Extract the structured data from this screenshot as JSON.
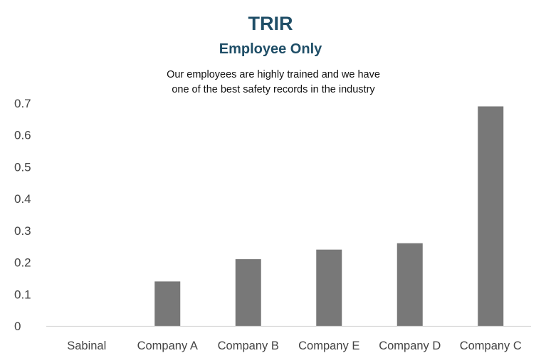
{
  "chart_data": {
    "type": "bar",
    "title": "TRIR",
    "subtitle": "Employee Only",
    "annotation": [
      "Our employees are highly trained and we have",
      "one of the best safety records in the industry"
    ],
    "categories": [
      "Sabinal",
      "Company A",
      "Company B",
      "Company E",
      "Company D",
      "Company C"
    ],
    "values": [
      0.0,
      0.14,
      0.21,
      0.24,
      0.26,
      0.69
    ],
    "yticks": [
      "0",
      "0.1",
      "0.2",
      "0.3",
      "0.4",
      "0.5",
      "0.6",
      "0.7"
    ],
    "ylim": [
      0,
      0.7
    ],
    "grid": false,
    "legend": "none",
    "bar_color": "#787878",
    "axis_color": "#d9d9d9"
  }
}
